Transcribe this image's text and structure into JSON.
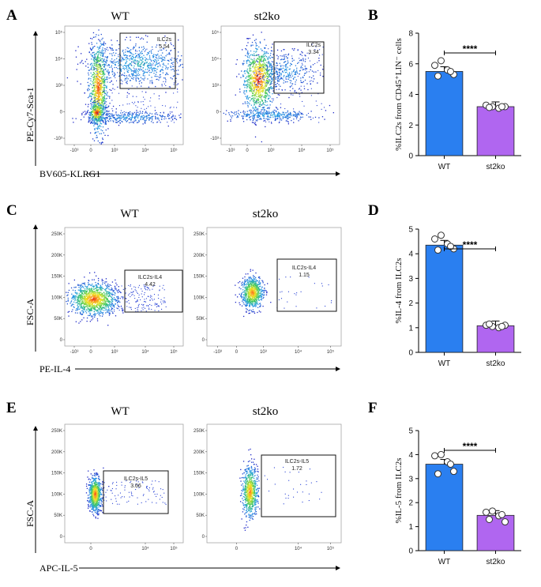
{
  "panels": {
    "A": "A",
    "B": "B",
    "C": "C",
    "D": "D",
    "E": "E",
    "F": "F"
  },
  "columns": {
    "wt": "WT",
    "ko": "st2ko"
  },
  "rows": [
    {
      "id": "A",
      "ylabel": "PE-Cy7-Sca-1",
      "xlabel": "BV605-KLRG1",
      "plot_style": "log",
      "x_ticks": [
        "-10³",
        "0",
        "10³",
        "10⁴",
        "10⁵"
      ],
      "y_ticks": [
        "10⁵",
        "10⁴",
        "10³",
        "0",
        "-10³"
      ],
      "gates": [
        {
          "name": "ILC2s",
          "value": "5.54"
        },
        {
          "name": "ILC2s",
          "value": "3.34"
        }
      ]
    },
    {
      "id": "C",
      "ylabel": "FSC-A",
      "xlabel": "PE-IL-4",
      "plot_style": "fsc",
      "x_ticks": [
        "-10³",
        "0",
        "10³",
        "10⁴",
        "10⁵"
      ],
      "y_ticks": [
        "250K",
        "200K",
        "150K",
        "100K",
        "50K",
        "0"
      ],
      "gates": [
        {
          "name": "ILC2s-IL4",
          "value": "4.42"
        },
        {
          "name": "ILC2s-IL4",
          "value": "1.15"
        }
      ]
    },
    {
      "id": "E",
      "ylabel": "FSC-A",
      "xlabel": "APC-IL-5",
      "plot_style": "fsc",
      "x_ticks": [
        "0",
        "10⁴",
        "10⁵"
      ],
      "y_ticks": [
        "250K",
        "200K",
        "150K",
        "100K",
        "50K",
        "0"
      ],
      "gates": [
        {
          "name": "ILC2s-IL5",
          "value": "3.66"
        },
        {
          "name": "ILC2s-IL5",
          "value": "1.72"
        }
      ]
    }
  ],
  "chart_data": [
    {
      "type": "bar",
      "panel": "B",
      "categories": [
        "WT",
        "st2ko"
      ],
      "values": [
        5.5,
        3.2
      ],
      "points": [
        [
          5.9,
          6.2,
          5.6,
          5.3,
          5.2,
          5.5
        ],
        [
          3.3,
          3.2,
          3.1,
          3.2,
          3.15,
          3.2
        ]
      ],
      "ylabel": "%ILC2s from CD45⁺LIN⁻ cells",
      "ylim": [
        0,
        8
      ],
      "yticks": [
        "0",
        "2",
        "4",
        "6",
        "8"
      ],
      "significance": "****",
      "colors": [
        "#2a7ff0",
        "#b066f0"
      ]
    },
    {
      "type": "bar",
      "panel": "D",
      "categories": [
        "WT",
        "st2ko"
      ],
      "values": [
        4.35,
        1.08
      ],
      "points": [
        [
          4.6,
          4.75,
          4.4,
          4.2,
          4.15,
          4.3
        ],
        [
          1.1,
          1.05,
          1.0,
          1.1,
          1.15,
          1.05
        ]
      ],
      "ylabel": "%IL-4 from ILC2s",
      "ylim": [
        0,
        5
      ],
      "yticks": [
        "0",
        "1",
        "2",
        "3",
        "4",
        "5"
      ],
      "significance": "****",
      "colors": [
        "#2a7ff0",
        "#b066f0"
      ]
    },
    {
      "type": "bar",
      "panel": "F",
      "categories": [
        "WT",
        "st2ko"
      ],
      "values": [
        3.6,
        1.47
      ],
      "points": [
        [
          3.95,
          4.0,
          3.7,
          3.3,
          3.2,
          3.6
        ],
        [
          1.6,
          1.65,
          1.45,
          1.2,
          1.3,
          1.5
        ]
      ],
      "ylabel": "%IL-5 from ILC2s",
      "ylim": [
        0,
        5
      ],
      "yticks": [
        "0",
        "1",
        "2",
        "3",
        "4",
        "5"
      ],
      "significance": "****",
      "colors": [
        "#2a7ff0",
        "#b066f0"
      ]
    }
  ]
}
